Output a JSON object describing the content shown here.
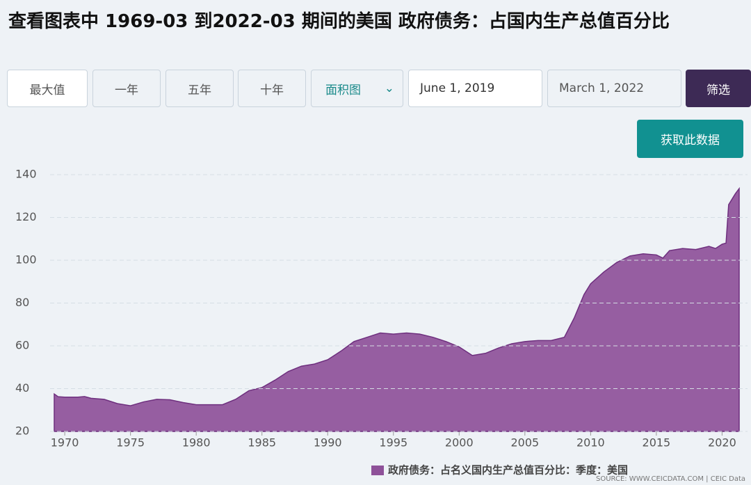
{
  "ui": {
    "buttons": [
      "最大值",
      "一年",
      "五年",
      "十年"
    ],
    "chart_select": "面积图",
    "start_date": "June 1, 2019",
    "end_date": "March 1, 2022",
    "filter": "筛选",
    "get_data": "获取此数据",
    "source": "SOURCE: WWW.CEICDATA.COM | CEIC Data"
  },
  "chart_data": {
    "type": "area",
    "title": "查看图表中 1969-03 到2022-03 期间的美国 政府债务：占国内生产总值百分比",
    "x": [
      1969.2,
      1969.5,
      1970,
      1971,
      1971.5,
      1972,
      1973,
      1974,
      1975,
      1976,
      1977,
      1978,
      1979,
      1980,
      1981,
      1982,
      1983,
      1984,
      1985,
      1986,
      1987,
      1988,
      1989,
      1990,
      1991,
      1992,
      1993,
      1994,
      1995,
      1996,
      1997,
      1998,
      1999,
      2000,
      2001,
      2002,
      2003,
      2004,
      2005,
      2006,
      2007,
      2008,
      2008.75,
      2009.5,
      2010,
      2011,
      2012,
      2013,
      2014,
      2015,
      2015.5,
      2016,
      2017,
      2018,
      2019,
      2019.5,
      2020,
      2020.3,
      2020.5,
      2021,
      2021.3
    ],
    "series": [
      {
        "name": "政府债务：占名义国内生产总值百分比：季度：美国",
        "color": "#8e5199",
        "values": [
          37.5,
          36.2,
          36,
          36,
          36.3,
          35.5,
          35,
          33,
          32,
          33.8,
          35,
          34.8,
          33.5,
          32.5,
          32.5,
          32.5,
          35,
          39,
          40.5,
          44,
          48,
          50.5,
          51.5,
          53.5,
          57.5,
          62,
          64,
          66,
          65.5,
          66,
          65.5,
          64,
          62,
          59.5,
          55.5,
          56.5,
          59,
          61,
          62,
          62.5,
          62.5,
          64,
          73,
          84,
          89,
          94.5,
          99,
          102,
          103,
          102.5,
          101,
          104.5,
          105.5,
          105,
          106.5,
          105.5,
          107.5,
          108,
          126,
          131,
          133.5
        ]
      }
    ],
    "xlim": [
      1969.2,
      2022.2
    ],
    "xticks": [
      1970,
      1975,
      1980,
      1985,
      1990,
      1995,
      2000,
      2005,
      2010,
      2015,
      2020
    ],
    "ylim": [
      20,
      140
    ],
    "yticks": [
      20,
      40,
      60,
      80,
      100,
      120,
      140
    ],
    "grid": true
  }
}
